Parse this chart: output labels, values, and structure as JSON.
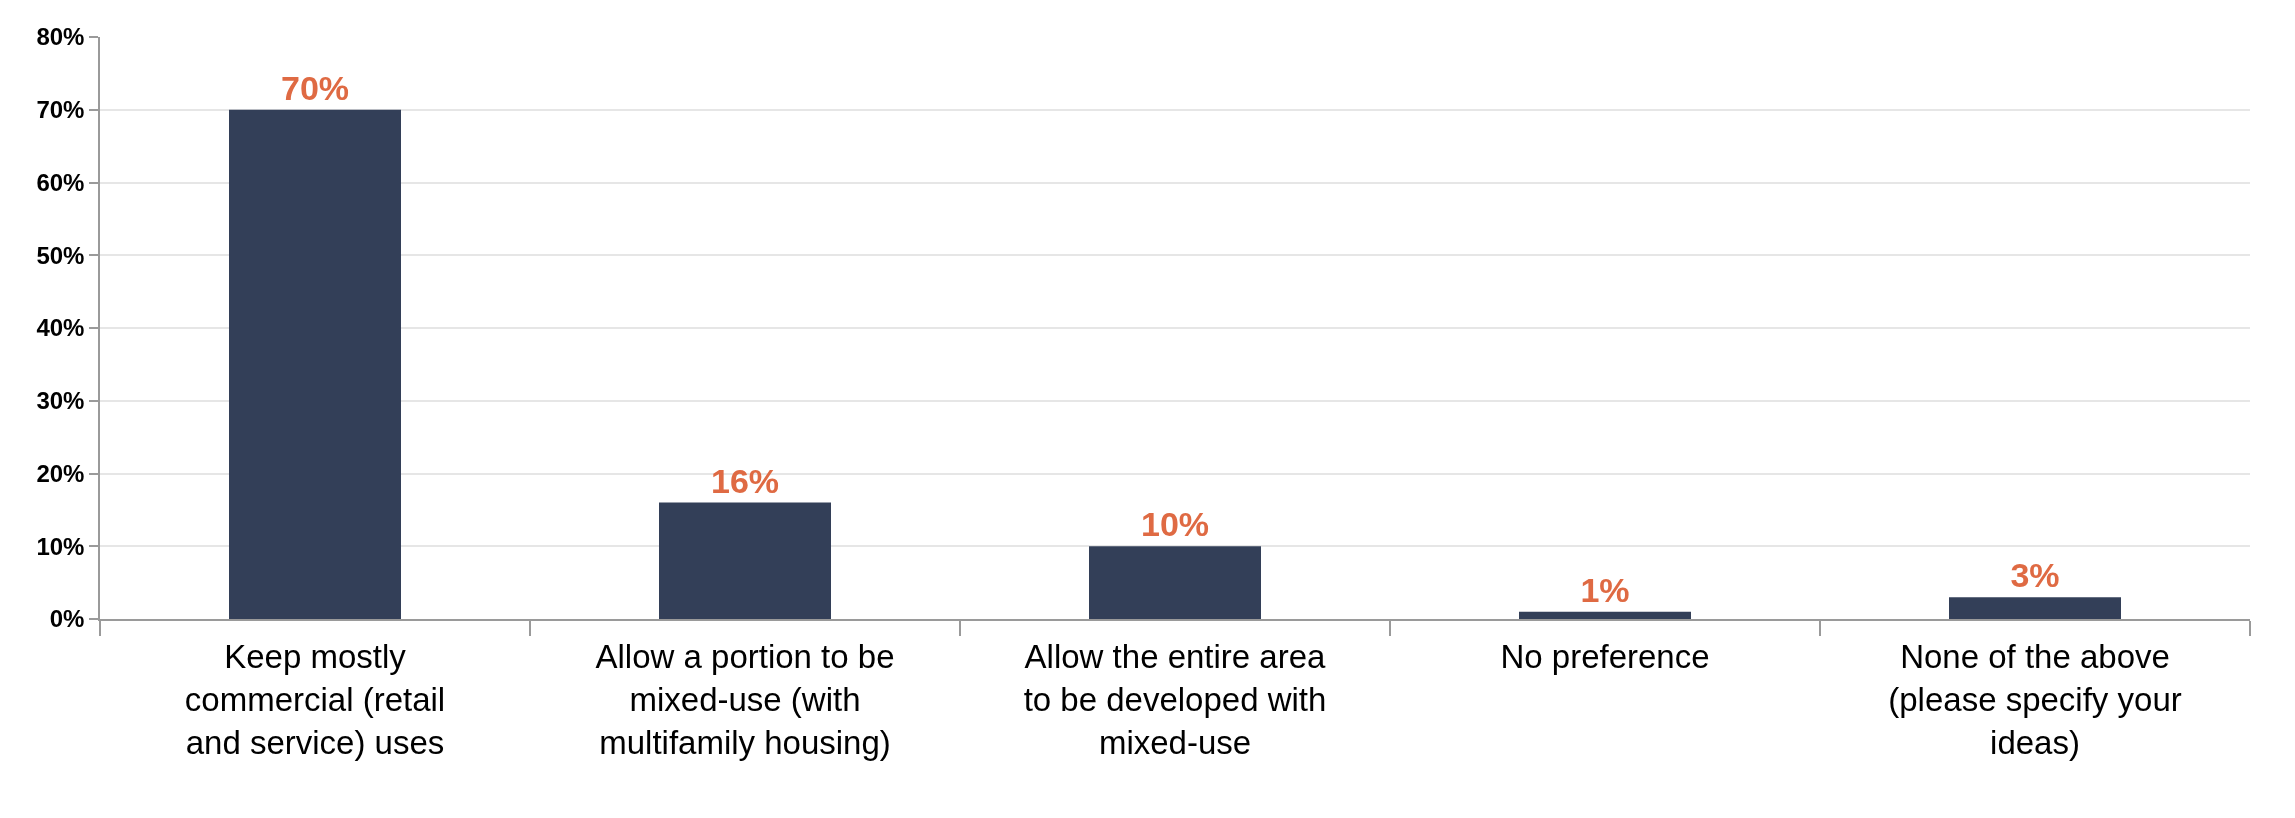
{
  "chart_data": {
    "type": "bar",
    "categories": [
      "Keep mostly commercial (retail and service) uses",
      "Allow a portion to be mixed-use (with multifamily housing)",
      "Allow the entire area to be developed with mixed-use",
      "No preference",
      "None of the above (please specify your ideas)"
    ],
    "values": [
      70,
      16,
      10,
      1,
      3
    ],
    "color": "#333f58",
    "value_labels": [
      "70%",
      "16%",
      "10%",
      "1%",
      "3%"
    ],
    "ylim": [
      0,
      80
    ],
    "yticks": [
      {
        "value": 0,
        "label": "0%"
      },
      {
        "value": 10,
        "label": "10%"
      },
      {
        "value": 20,
        "label": "20%"
      },
      {
        "value": 30,
        "label": "30%"
      },
      {
        "value": 40,
        "label": "40%"
      },
      {
        "value": 50,
        "label": "50%"
      },
      {
        "value": 60,
        "label": "60%"
      },
      {
        "value": 70,
        "label": "70%"
      },
      {
        "value": 80,
        "label": "80%"
      }
    ],
    "grid": "y"
  }
}
